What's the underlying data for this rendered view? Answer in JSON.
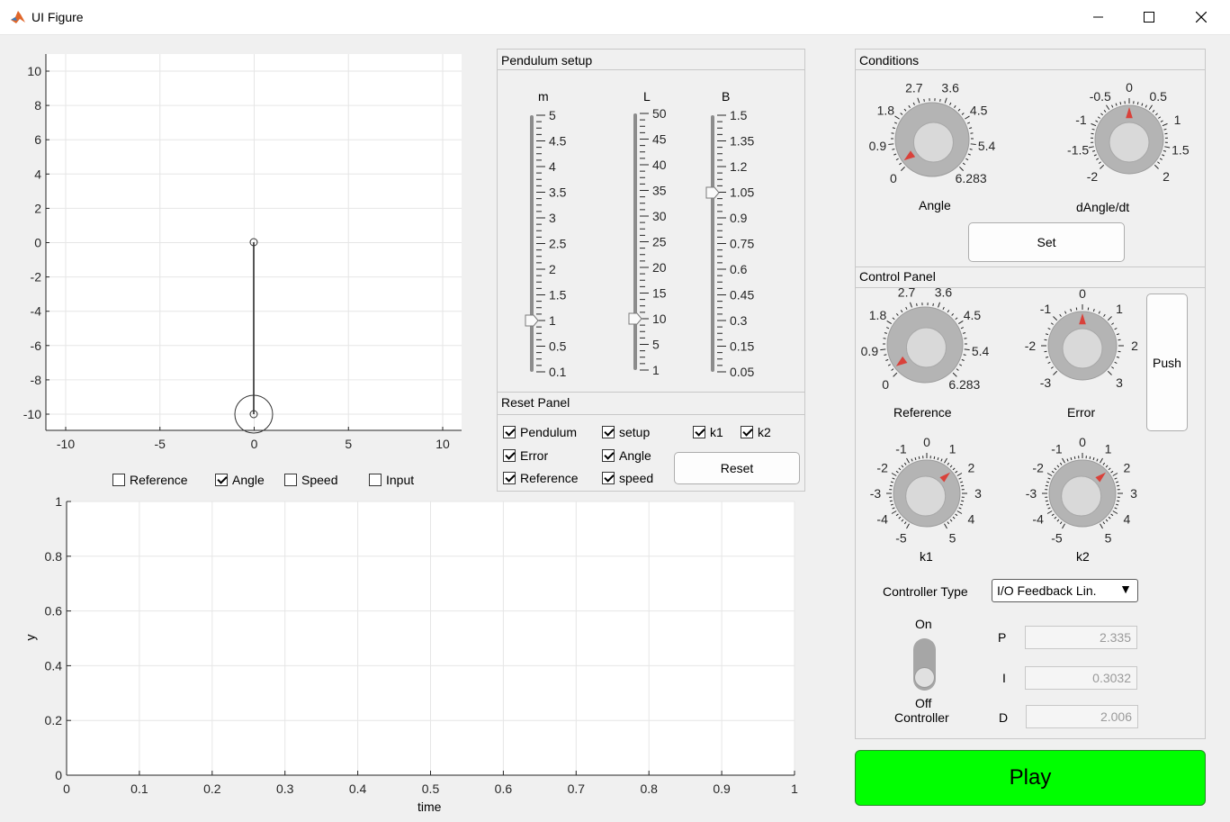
{
  "window": {
    "title": "UI Figure"
  },
  "pendulum_axes": {
    "x_ticks": [
      "-10",
      "-5",
      "0",
      "5",
      "10"
    ],
    "y_ticks": [
      "10",
      "8",
      "6",
      "4",
      "2",
      "0",
      "-2",
      "-4",
      "-6",
      "-8",
      "-10"
    ]
  },
  "plot_checkboxes": [
    {
      "label": "Reference",
      "checked": false
    },
    {
      "label": "Angle",
      "checked": true
    },
    {
      "label": "Speed",
      "checked": false
    },
    {
      "label": "Input",
      "checked": false
    }
  ],
  "time_plot": {
    "xlabel": "time",
    "ylabel": "y",
    "x_ticks": [
      "0",
      "0.1",
      "0.2",
      "0.3",
      "0.4",
      "0.5",
      "0.6",
      "0.7",
      "0.8",
      "0.9",
      "1"
    ],
    "y_ticks": [
      "0",
      "0.2",
      "0.4",
      "0.6",
      "0.8",
      "1"
    ]
  },
  "pendulum_setup": {
    "title": "Pendulum setup",
    "sliders": [
      {
        "label": "m",
        "ticks": [
          "5",
          "4.5",
          "4",
          "3.5",
          "3",
          "2.5",
          "2",
          "1.5",
          "1",
          "0.5",
          "0.1"
        ],
        "value": 1
      },
      {
        "label": "L",
        "ticks": [
          "50",
          "45",
          "40",
          "35",
          "30",
          "25",
          "20",
          "15",
          "10",
          "5",
          "1"
        ],
        "value": 10
      },
      {
        "label": "B",
        "ticks": [
          "1.5",
          "1.35",
          "1.2",
          "1.05",
          "0.9",
          "0.75",
          "0.6",
          "0.45",
          "0.3",
          "0.15",
          "0.05"
        ],
        "value": 1.05
      }
    ]
  },
  "reset_panel": {
    "title": "Reset Panel",
    "checkboxes": [
      {
        "label": "Pendulum",
        "checked": true
      },
      {
        "label": "setup",
        "checked": true
      },
      {
        "label": "k1",
        "checked": true
      },
      {
        "label": "k2",
        "checked": true
      },
      {
        "label": "Error",
        "checked": true
      },
      {
        "label": "Angle",
        "checked": true
      },
      {
        "label": "Reference",
        "checked": true
      },
      {
        "label": "speed",
        "checked": true
      }
    ],
    "reset_label": "Reset"
  },
  "conditions": {
    "title": "Conditions",
    "angle_knob": {
      "label": "Angle",
      "ticks": [
        "0",
        "0.9",
        "1.8",
        "2.7",
        "3.6",
        "4.5",
        "5.4",
        "6.283"
      ],
      "value": 0.2
    },
    "dangle_knob": {
      "label": "dAngle/dt",
      "ticks": [
        "-2",
        "-1.5",
        "-1",
        "-0.5",
        "0",
        "0.5",
        "1",
        "1.5",
        "2"
      ],
      "value": 0
    },
    "set_label": "Set"
  },
  "control_panel": {
    "title": "Control Panel",
    "reference_knob": {
      "label": "Reference",
      "ticks": [
        "0",
        "0.9",
        "1.8",
        "2.7",
        "3.6",
        "4.5",
        "5.4",
        "6.283"
      ],
      "value": 0.2
    },
    "error_knob": {
      "label": "Error",
      "ticks": [
        "-3",
        "-2",
        "-1",
        "0",
        "1",
        "2",
        "3"
      ],
      "value": 0
    },
    "push_label": "Push",
    "k1_knob": {
      "label": "k1",
      "ticks": [
        "-5",
        "-4",
        "-3",
        "-2",
        "-1",
        "0",
        "1",
        "2",
        "3",
        "4",
        "5"
      ],
      "value": 1.6
    },
    "k2_knob": {
      "label": "k2",
      "ticks": [
        "-5",
        "-4",
        "-3",
        "-2",
        "-1",
        "0",
        "1",
        "2",
        "3",
        "4",
        "5"
      ],
      "value": 1.6
    },
    "controller_type_label": "Controller Type",
    "controller_type_value": "I/O Feedback Lin.",
    "switch_on_label": "On",
    "switch_off_label": "Off",
    "switch_caption": "Controller",
    "switch_state": "Off",
    "gains": [
      {
        "label": "P",
        "value": "2.335"
      },
      {
        "label": "I",
        "value": "0.3032"
      },
      {
        "label": "D",
        "value": "2.006"
      }
    ]
  },
  "play_label": "Play",
  "colors": {
    "play_green": "#00ff00",
    "knob_marker": "#d9413a"
  }
}
